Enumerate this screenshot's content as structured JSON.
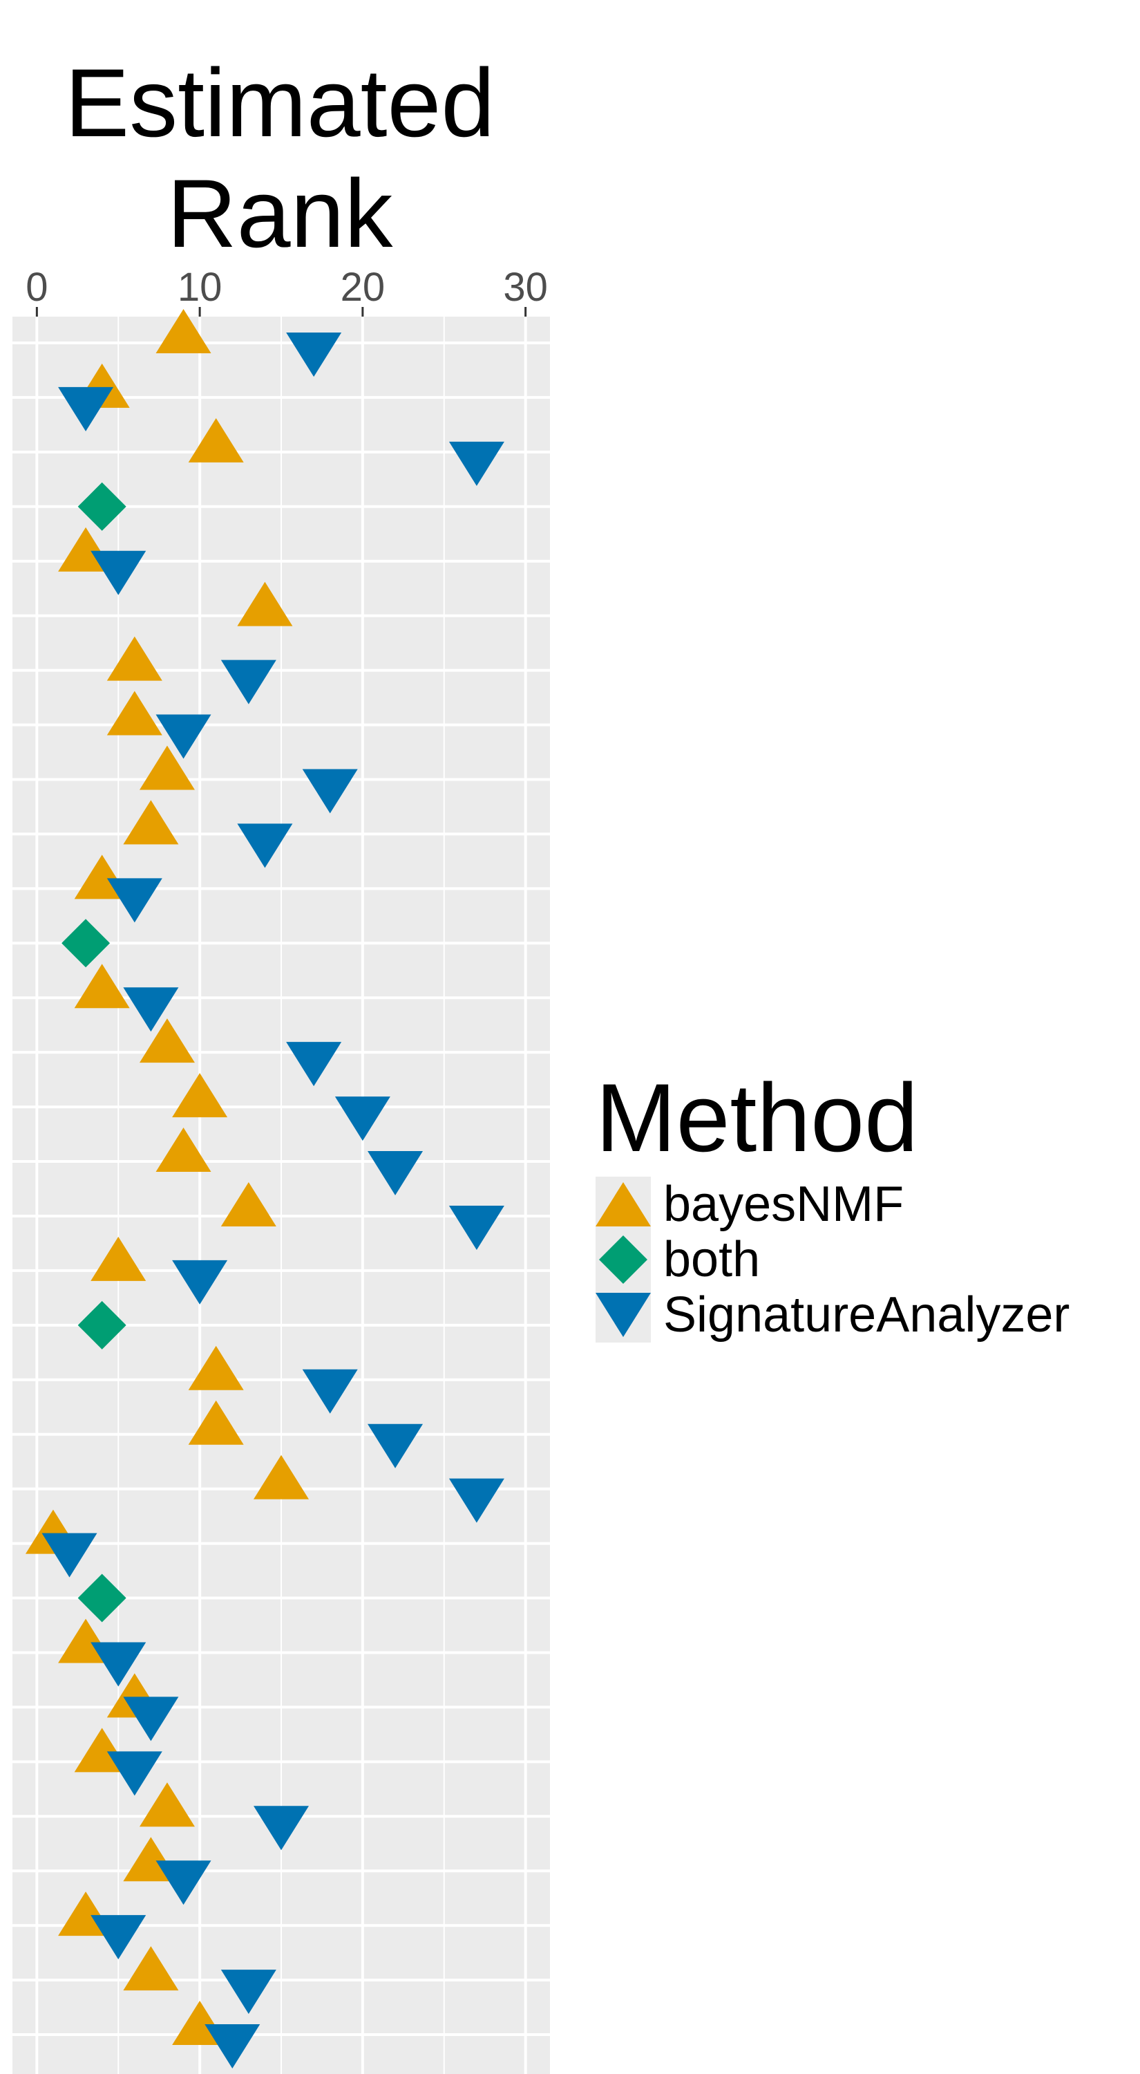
{
  "chart_data": {
    "type": "scatter",
    "title": "Estimated\nRank",
    "xlabel": "",
    "ylabel": "",
    "xlim": [
      -1.5,
      31.5
    ],
    "xticks": [
      0,
      10,
      20,
      30
    ],
    "xtick_labels": [
      "0",
      "10",
      "20",
      "30"
    ],
    "grid": true,
    "legend_position": "right",
    "legend": {
      "title": "Method",
      "entries": [
        {
          "name": "bayesNMF",
          "shape": "triangle-up",
          "color": "#E69F00"
        },
        {
          "name": "both",
          "shape": "diamond",
          "color": "#009E73"
        },
        {
          "name": "SignatureAnalyzer",
          "shape": "triangle-down",
          "color": "#0072B2"
        }
      ]
    },
    "rows": [
      {
        "bayesNMF": 9,
        "SignatureAnalyzer": 17
      },
      {
        "bayesNMF": 4,
        "SignatureAnalyzer": 3
      },
      {
        "bayesNMF": 11,
        "SignatureAnalyzer": 27
      },
      {
        "both": 4
      },
      {
        "bayesNMF": 3,
        "SignatureAnalyzer": 5
      },
      {
        "bayesNMF": 14
      },
      {
        "bayesNMF": 6,
        "SignatureAnalyzer": 13
      },
      {
        "bayesNMF": 6,
        "SignatureAnalyzer": 9
      },
      {
        "bayesNMF": 8,
        "SignatureAnalyzer": 18
      },
      {
        "bayesNMF": 7,
        "SignatureAnalyzer": 14
      },
      {
        "bayesNMF": 4,
        "SignatureAnalyzer": 6
      },
      {
        "both": 3
      },
      {
        "bayesNMF": 4,
        "SignatureAnalyzer": 7
      },
      {
        "bayesNMF": 8,
        "SignatureAnalyzer": 17
      },
      {
        "bayesNMF": 10,
        "SignatureAnalyzer": 20
      },
      {
        "bayesNMF": 9,
        "SignatureAnalyzer": 22
      },
      {
        "bayesNMF": 13,
        "SignatureAnalyzer": 27
      },
      {
        "bayesNMF": 5,
        "SignatureAnalyzer": 10
      },
      {
        "both": 4
      },
      {
        "bayesNMF": 11,
        "SignatureAnalyzer": 18
      },
      {
        "bayesNMF": 11,
        "SignatureAnalyzer": 22
      },
      {
        "bayesNMF": 15,
        "SignatureAnalyzer": 27
      },
      {
        "bayesNMF": 1,
        "SignatureAnalyzer": 2
      },
      {
        "both": 4
      },
      {
        "bayesNMF": 3,
        "SignatureAnalyzer": 5
      },
      {
        "bayesNMF": 6,
        "SignatureAnalyzer": 7
      },
      {
        "bayesNMF": 4,
        "SignatureAnalyzer": 6
      },
      {
        "bayesNMF": 8,
        "SignatureAnalyzer": 15
      },
      {
        "bayesNMF": 7,
        "SignatureAnalyzer": 9
      },
      {
        "bayesNMF": 3,
        "SignatureAnalyzer": 5
      },
      {
        "bayesNMF": 7,
        "SignatureAnalyzer": 13
      },
      {
        "bayesNMF": 10,
        "SignatureAnalyzer": 12
      }
    ],
    "colors": {
      "panel_bg": "#EBEBEB",
      "grid": "#FFFFFF",
      "bayesNMF": "#E69F00",
      "both": "#009E73",
      "SignatureAnalyzer": "#0072B2"
    }
  }
}
